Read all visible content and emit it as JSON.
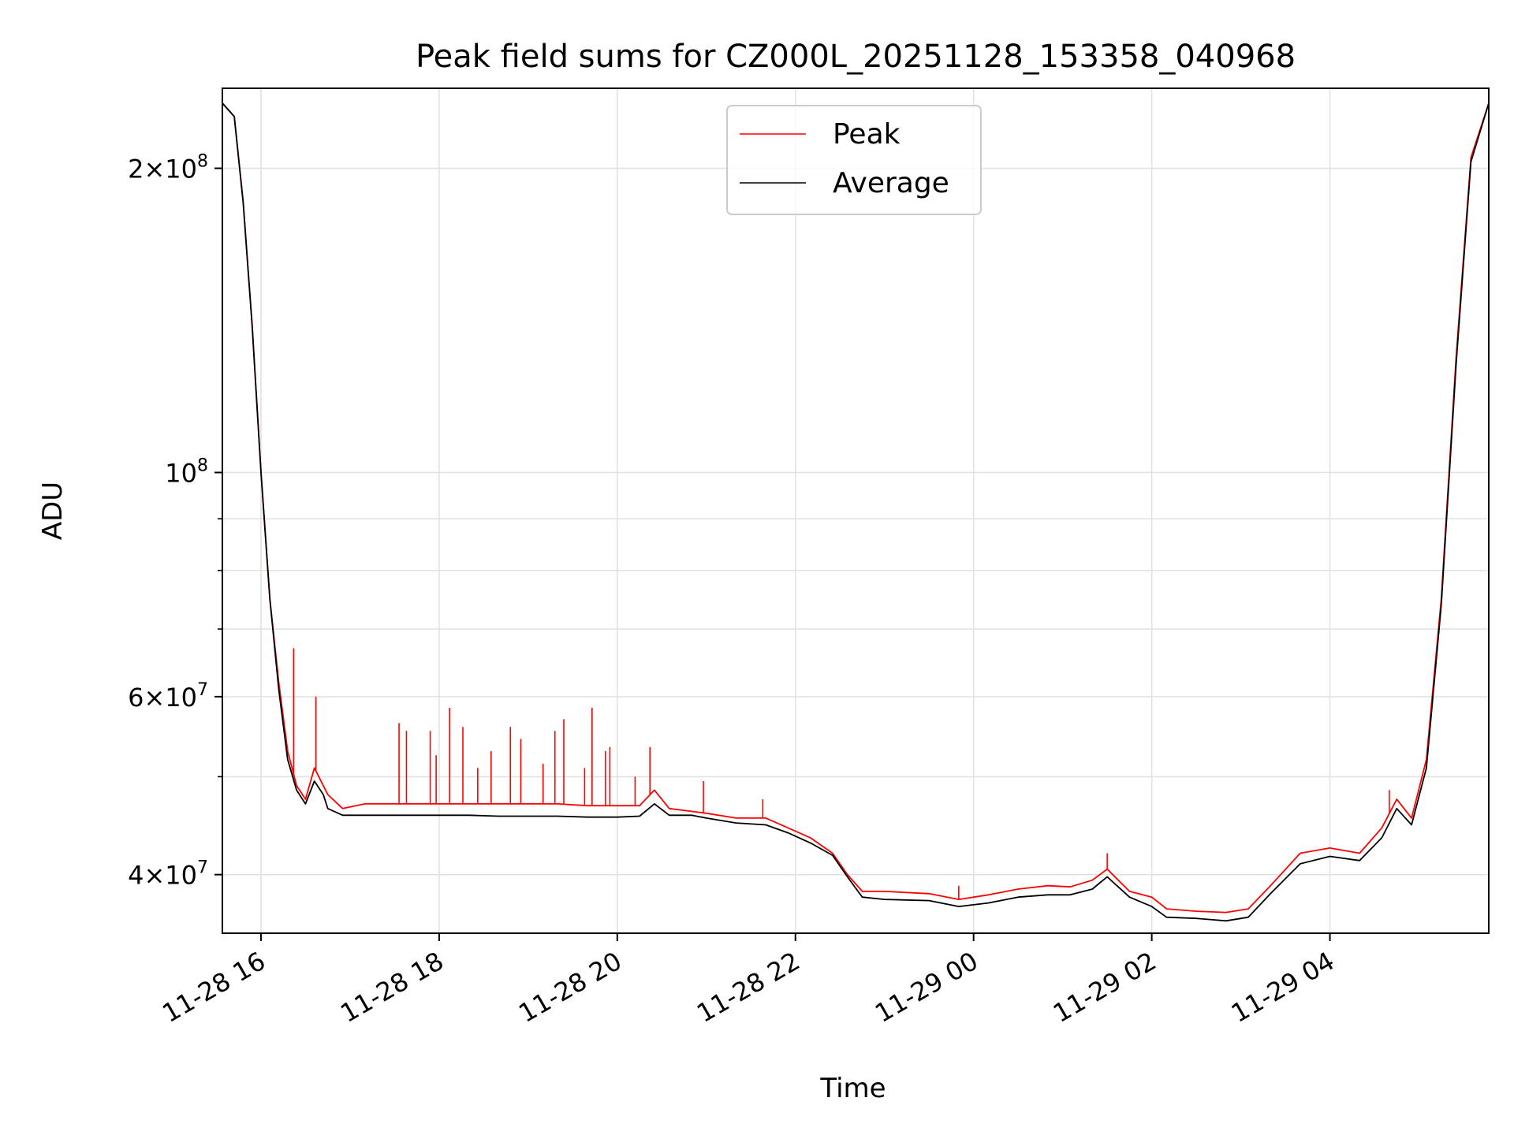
{
  "chart_data": {
    "type": "line",
    "title": "Peak field sums for CZ000L_20251128_153358_040968",
    "xlabel": "Time",
    "ylabel": "ADU",
    "yscale": "log",
    "xlim": [
      "2025-11-28 15:34",
      "2025-11-29 05:47"
    ],
    "ylim": [
      35000000,
      240000000
    ],
    "grid": true,
    "legend_position": "top-center",
    "x_ticks": [
      {
        "t": "2025-11-28 16:00",
        "label": "11-28 16"
      },
      {
        "t": "2025-11-28 18:00",
        "label": "11-28 18"
      },
      {
        "t": "2025-11-28 20:00",
        "label": "11-28 20"
      },
      {
        "t": "2025-11-28 22:00",
        "label": "11-28 22"
      },
      {
        "t": "2025-11-29 00:00",
        "label": "11-29 00"
      },
      {
        "t": "2025-11-29 02:00",
        "label": "11-29 02"
      },
      {
        "t": "2025-11-29 04:00",
        "label": "11-29 04"
      }
    ],
    "y_major_ticks": [
      {
        "value": 40000000,
        "mant": "4",
        "exp": "7"
      },
      {
        "value": 60000000,
        "mant": "6",
        "exp": "7"
      },
      {
        "value": 100000000,
        "mant": "",
        "exp": "8"
      },
      {
        "value": 200000000,
        "mant": "2",
        "exp": "8"
      }
    ],
    "y_minor_ticks": [
      50000000,
      70000000,
      80000000,
      90000000
    ],
    "series": [
      {
        "name": "Peak",
        "color": "#ff0000",
        "x": [
          "2025-11-28 15:34",
          "2025-11-28 15:42",
          "2025-11-28 15:48",
          "2025-11-28 15:54",
          "2025-11-28 16:00",
          "2025-11-28 16:06",
          "2025-11-28 16:12",
          "2025-11-28 16:18",
          "2025-11-28 16:24",
          "2025-11-28 16:30",
          "2025-11-28 16:36",
          "2025-11-28 16:42",
          "2025-11-28 16:45",
          "2025-11-28 16:55",
          "2025-11-28 17:10",
          "2025-11-28 17:30",
          "2025-11-28 17:50",
          "2025-11-28 18:00",
          "2025-11-28 18:20",
          "2025-11-28 18:40",
          "2025-11-28 19:00",
          "2025-11-28 19:20",
          "2025-11-28 19:40",
          "2025-11-28 20:00",
          "2025-11-28 20:15",
          "2025-11-28 20:25",
          "2025-11-28 20:35",
          "2025-11-28 20:50",
          "2025-11-28 21:00",
          "2025-11-28 21:20",
          "2025-11-28 21:40",
          "2025-11-28 21:55",
          "2025-11-28 22:10",
          "2025-11-28 22:25",
          "2025-11-28 22:35",
          "2025-11-28 22:45",
          "2025-11-28 23:00",
          "2025-11-28 23:30",
          "2025-11-28 23:50",
          "2025-11-29 00:10",
          "2025-11-29 00:30",
          "2025-11-29 00:50",
          "2025-11-29 01:05",
          "2025-11-29 01:20",
          "2025-11-29 01:30",
          "2025-11-29 01:45",
          "2025-11-29 02:00",
          "2025-11-29 02:10",
          "2025-11-29 02:30",
          "2025-11-29 02:50",
          "2025-11-29 03:05",
          "2025-11-29 03:20",
          "2025-11-29 03:40",
          "2025-11-29 04:00",
          "2025-11-29 04:20",
          "2025-11-29 04:35",
          "2025-11-29 04:45",
          "2025-11-29 04:55",
          "2025-11-29 05:05",
          "2025-11-29 05:15",
          "2025-11-29 05:25",
          "2025-11-29 05:35",
          "2025-11-29 05:47"
        ],
        "y": [
          232000000,
          225000000,
          185000000,
          140000000,
          100000000,
          75000000,
          62000000,
          53000000,
          49000000,
          47500000,
          51000000,
          49000000,
          48000000,
          46500000,
          47000000,
          47000000,
          47000000,
          47000000,
          47000000,
          47000000,
          47000000,
          47000000,
          46800000,
          46800000,
          46800000,
          48500000,
          46500000,
          46200000,
          46000000,
          45500000,
          45500000,
          44500000,
          43500000,
          42000000,
          40000000,
          38500000,
          38500000,
          38300000,
          37800000,
          38200000,
          38700000,
          39000000,
          38900000,
          39500000,
          40500000,
          38500000,
          38000000,
          37000000,
          36800000,
          36700000,
          37000000,
          39000000,
          42000000,
          42500000,
          42000000,
          44500000,
          47500000,
          45500000,
          52000000,
          75000000,
          130000000,
          205000000,
          232000000
        ],
        "spikes": [
          [
            "2025-11-28 16:22",
            67000000
          ],
          [
            "2025-11-28 16:37",
            60000000
          ],
          [
            "2025-11-28 17:33",
            56500000
          ],
          [
            "2025-11-28 17:38",
            55500000
          ],
          [
            "2025-11-28 17:54",
            55500000
          ],
          [
            "2025-11-28 17:58",
            52500000
          ],
          [
            "2025-11-28 18:07",
            58500000
          ],
          [
            "2025-11-28 18:16",
            56000000
          ],
          [
            "2025-11-28 18:26",
            51000000
          ],
          [
            "2025-11-28 18:35",
            53000000
          ],
          [
            "2025-11-28 18:48",
            56000000
          ],
          [
            "2025-11-28 18:55",
            54500000
          ],
          [
            "2025-11-28 19:10",
            51500000
          ],
          [
            "2025-11-28 19:18",
            55500000
          ],
          [
            "2025-11-28 19:24",
            57000000
          ],
          [
            "2025-11-28 19:38",
            51000000
          ],
          [
            "2025-11-28 19:43",
            58500000
          ],
          [
            "2025-11-28 19:52",
            53000000
          ],
          [
            "2025-11-28 19:55",
            53500000
          ],
          [
            "2025-11-28 20:12",
            50000000
          ],
          [
            "2025-11-28 20:22",
            53500000
          ],
          [
            "2025-11-28 20:58",
            49500000
          ],
          [
            "2025-11-28 21:38",
            47500000
          ],
          [
            "2025-11-28 23:50",
            39000000
          ],
          [
            "2025-11-29 01:30",
            42000000
          ],
          [
            "2025-11-29 04:40",
            48500000
          ]
        ]
      },
      {
        "name": "Average",
        "color": "#000000",
        "x": [
          "2025-11-28 15:34",
          "2025-11-28 15:42",
          "2025-11-28 15:48",
          "2025-11-28 15:54",
          "2025-11-28 16:00",
          "2025-11-28 16:06",
          "2025-11-28 16:12",
          "2025-11-28 16:18",
          "2025-11-28 16:24",
          "2025-11-28 16:30",
          "2025-11-28 16:36",
          "2025-11-28 16:42",
          "2025-11-28 16:45",
          "2025-11-28 16:55",
          "2025-11-28 17:10",
          "2025-11-28 17:30",
          "2025-11-28 17:50",
          "2025-11-28 18:00",
          "2025-11-28 18:20",
          "2025-11-28 18:40",
          "2025-11-28 19:00",
          "2025-11-28 19:20",
          "2025-11-28 19:40",
          "2025-11-28 20:00",
          "2025-11-28 20:15",
          "2025-11-28 20:25",
          "2025-11-28 20:35",
          "2025-11-28 20:50",
          "2025-11-28 21:00",
          "2025-11-28 21:20",
          "2025-11-28 21:40",
          "2025-11-28 21:55",
          "2025-11-28 22:10",
          "2025-11-28 22:25",
          "2025-11-28 22:35",
          "2025-11-28 22:45",
          "2025-11-28 23:00",
          "2025-11-28 23:30",
          "2025-11-28 23:50",
          "2025-11-29 00:10",
          "2025-11-29 00:30",
          "2025-11-29 00:50",
          "2025-11-29 01:05",
          "2025-11-29 01:20",
          "2025-11-29 01:30",
          "2025-11-29 01:45",
          "2025-11-29 02:00",
          "2025-11-29 02:10",
          "2025-11-29 02:30",
          "2025-11-29 02:50",
          "2025-11-29 03:05",
          "2025-11-29 03:20",
          "2025-11-29 03:40",
          "2025-11-29 04:00",
          "2025-11-29 04:20",
          "2025-11-29 04:35",
          "2025-11-29 04:45",
          "2025-11-29 04:55",
          "2025-11-29 05:05",
          "2025-11-29 05:15",
          "2025-11-29 05:25",
          "2025-11-29 05:35",
          "2025-11-29 05:47"
        ],
        "y": [
          232000000,
          225000000,
          185000000,
          140000000,
          100000000,
          75000000,
          61000000,
          52000000,
          48500000,
          47000000,
          49500000,
          48000000,
          46500000,
          45800000,
          45800000,
          45800000,
          45800000,
          45800000,
          45800000,
          45700000,
          45700000,
          45700000,
          45600000,
          45600000,
          45700000,
          47000000,
          45800000,
          45800000,
          45500000,
          45000000,
          44800000,
          44000000,
          43000000,
          41800000,
          39800000,
          38000000,
          37800000,
          37700000,
          37200000,
          37500000,
          38000000,
          38200000,
          38200000,
          38700000,
          39800000,
          38000000,
          37200000,
          36300000,
          36200000,
          36000000,
          36300000,
          38300000,
          41000000,
          41700000,
          41300000,
          43500000,
          46500000,
          44800000,
          51000000,
          74000000,
          128000000,
          203000000,
          232000000
        ]
      }
    ]
  }
}
